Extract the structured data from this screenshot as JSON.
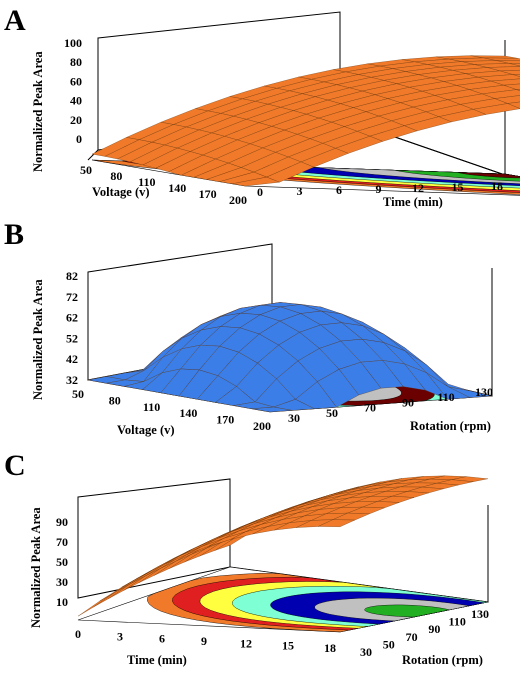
{
  "chart_data": [
    {
      "panel": "A",
      "type": "surface3d",
      "zlabel": "Normalized Peak Area",
      "xlabel": "Voltage (v)",
      "ylabel": "Time (min)",
      "x_ticks": [
        "50",
        "80",
        "110",
        "140",
        "170",
        "200"
      ],
      "y_ticks": [
        "0",
        "3",
        "6",
        "9",
        "12",
        "15",
        "18"
      ],
      "z_ticks": [
        "0",
        "20",
        "40",
        "60",
        "80",
        "100"
      ],
      "xlim": [
        50,
        200
      ],
      "ylim": [
        0,
        18
      ],
      "zlim": [
        0,
        100
      ],
      "surface_color": "#f07a2a",
      "contour_colors": [
        "#ffffff",
        "#f07a2a",
        "#e02020",
        "#ffff40",
        "#7fffd4",
        "#0000b0",
        "#c0c0c0",
        "#22b022",
        "#6b0000"
      ],
      "surface_corners": {
        "x50_y0": 5,
        "x200_y0": 0,
        "x50_y18": 100,
        "x200_y18": 84
      },
      "surface_peak": {
        "x": 80,
        "y": 17,
        "z": 100
      }
    },
    {
      "panel": "B",
      "type": "surface3d",
      "zlabel": "Normalized Peak Area",
      "xlabel": "Voltage (v)",
      "ylabel": "Rotation (rpm)",
      "x_ticks": [
        "50",
        "80",
        "110",
        "140",
        "170",
        "200"
      ],
      "y_ticks": [
        "30",
        "50",
        "70",
        "90",
        "110",
        "130"
      ],
      "z_ticks": [
        "32",
        "42",
        "52",
        "62",
        "72",
        "82"
      ],
      "xlim": [
        50,
        200
      ],
      "ylim": [
        30,
        130
      ],
      "zlim": [
        32,
        82
      ],
      "surface_color": "#3c7ee8",
      "contour_colors": [
        "#ffff40",
        "#7fffd4",
        "#6b0000",
        "#c0c0c0"
      ],
      "surface_corners": {
        "x50_y30": 33,
        "x200_y30": 34,
        "x50_y130": 41,
        "x200_y130": 38
      },
      "surface_peak": {
        "x": 125,
        "y": 85,
        "z": 67
      }
    },
    {
      "panel": "C",
      "type": "surface3d",
      "zlabel": "Normalized Peak Area",
      "xlabel": "Time (min)",
      "ylabel": "Rotation (rpm)",
      "x_ticks": [
        "0",
        "3",
        "6",
        "9",
        "12",
        "15",
        "18"
      ],
      "y_ticks": [
        "30",
        "50",
        "70",
        "90",
        "110",
        "130"
      ],
      "z_ticks": [
        "10",
        "30",
        "50",
        "70",
        "90"
      ],
      "xlim": [
        0,
        18
      ],
      "ylim": [
        30,
        130
      ],
      "zlim": [
        0,
        100
      ],
      "surface_color": "#f07a2a",
      "contour_colors": [
        "#f07a2a",
        "#e02020",
        "#ffff40",
        "#7fffd4",
        "#0000b0",
        "#c0c0c0",
        "#22b022"
      ],
      "surface_corners": {
        "x0_y30": 12,
        "x18_y30": 88,
        "x0_y130": 30,
        "x18_y130": 96
      },
      "surface_peak": {
        "x": 16,
        "y": 100,
        "z": 100
      }
    }
  ]
}
